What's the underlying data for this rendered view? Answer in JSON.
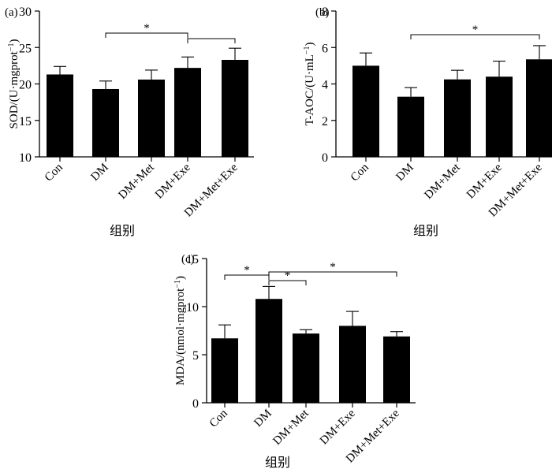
{
  "chart_data": [
    {
      "type": "bar",
      "panel_label": "(a)",
      "categories": [
        "Con",
        "DM",
        "DM+Met",
        "DM+Exe",
        "DM+Met+Exe"
      ],
      "values": [
        21.3,
        19.3,
        20.6,
        22.2,
        23.3
      ],
      "errors": [
        1.1,
        1.1,
        1.3,
        1.5,
        1.6
      ],
      "ylabel_main": "SOD/(U·mgprot",
      "ylabel_sup": "−1",
      "ylabel_tail": ")",
      "xlabel": "组别",
      "ylim": [
        10,
        30
      ],
      "yticks": [
        "10",
        "15",
        "20",
        "25",
        "30"
      ],
      "significance": [
        {
          "from": "DM",
          "to": "DM+Exe",
          "label": "*"
        },
        {
          "from": "DM+Exe",
          "to": "DM+Met+Exe",
          "label": ""
        }
      ]
    },
    {
      "type": "bar",
      "panel_label": "(b)",
      "categories": [
        "Con",
        "DM",
        "DM+Met",
        "DM+Exe",
        "DM+Met+Exe"
      ],
      "values": [
        5.0,
        3.3,
        4.25,
        4.4,
        5.35
      ],
      "errors": [
        0.7,
        0.5,
        0.5,
        0.85,
        0.75
      ],
      "ylabel_main": "T-AOC/(U·mL",
      "ylabel_sup": "−1",
      "ylabel_tail": ")",
      "xlabel": "组别",
      "ylim": [
        0,
        8
      ],
      "yticks": [
        "0",
        "2",
        "4",
        "6",
        "8"
      ],
      "significance": [
        {
          "from": "DM",
          "to": "DM+Met+Exe",
          "label": "*"
        }
      ]
    },
    {
      "type": "bar",
      "panel_label": "(c)",
      "categories": [
        "Con",
        "DM",
        "DM+Met",
        "DM+Exe",
        "DM+Met+Exe"
      ],
      "values": [
        6.7,
        10.8,
        7.2,
        8.0,
        6.9
      ],
      "errors": [
        1.4,
        1.3,
        0.4,
        1.5,
        0.5
      ],
      "ylabel_main": "MDA/(nmol·mgprot",
      "ylabel_sup": "−1",
      "ylabel_tail": ")",
      "xlabel": "组别",
      "ylim": [
        0,
        15
      ],
      "yticks": [
        "0",
        "5",
        "10",
        "15"
      ],
      "significance": [
        {
          "from": "Con",
          "to": "DM",
          "label": "*"
        },
        {
          "from": "DM",
          "to": "DM+Met",
          "label": "*"
        },
        {
          "from": "DM",
          "to": "DM+Met+Exe",
          "label": "*"
        }
      ]
    }
  ]
}
